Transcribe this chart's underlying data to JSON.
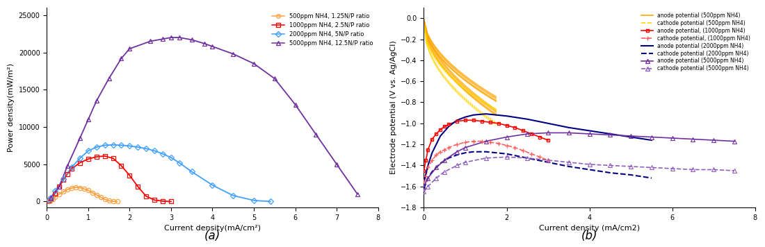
{
  "panel_a": {
    "title": "(a)",
    "xlabel": "Current density(mA/cm²)",
    "ylabel": "Power density(mW/m²)",
    "xlim": [
      0,
      8
    ],
    "ylim": [
      -800,
      26000
    ],
    "yticks": [
      0,
      5000,
      10000,
      15000,
      20000,
      25000
    ],
    "xticks": [
      0,
      1,
      2,
      3,
      4,
      5,
      6,
      7,
      8
    ],
    "colors": [
      "#FFA040",
      "#FF0000",
      "#40A0FF",
      "#7030A0"
    ],
    "markers": [
      "o",
      "s",
      "D",
      "^"
    ],
    "labels": [
      "500ppm NH4, 1.25N/P ratio",
      "1000ppm NH4, 2.5N/P ratio",
      "2000ppm NH4, 5N/P ratio",
      "5000ppm NH4, 12.5N/P ratio"
    ],
    "x_data": [
      [
        0.05,
        0.1,
        0.15,
        0.2,
        0.3,
        0.4,
        0.5,
        0.6,
        0.7,
        0.8,
        0.9,
        1.0,
        1.1,
        1.2,
        1.3,
        1.4,
        1.5,
        1.6,
        1.7
      ],
      [
        0.05,
        0.1,
        0.2,
        0.3,
        0.4,
        0.5,
        0.6,
        0.8,
        1.0,
        1.2,
        1.4,
        1.6,
        1.8,
        2.0,
        2.2,
        2.4,
        2.6,
        2.8,
        3.0
      ],
      [
        0.05,
        0.1,
        0.2,
        0.4,
        0.6,
        0.8,
        1.0,
        1.2,
        1.4,
        1.6,
        1.8,
        2.0,
        2.2,
        2.4,
        2.6,
        2.8,
        3.0,
        3.2,
        3.5,
        4.0,
        4.5,
        5.0,
        5.4
      ],
      [
        0.1,
        0.3,
        0.5,
        0.8,
        1.0,
        1.2,
        1.5,
        1.8,
        2.0,
        2.5,
        2.8,
        3.0,
        3.2,
        3.5,
        3.8,
        4.0,
        4.5,
        5.0,
        5.5,
        6.0,
        6.5,
        7.0,
        7.5
      ]
    ],
    "y_data": [
      [
        60,
        180,
        350,
        600,
        1000,
        1300,
        1600,
        1800,
        1920,
        1850,
        1700,
        1500,
        1200,
        900,
        600,
        300,
        100,
        30,
        0
      ],
      [
        100,
        400,
        1100,
        2000,
        2900,
        3700,
        4400,
        5200,
        5700,
        6000,
        6100,
        5800,
        4800,
        3500,
        2000,
        700,
        200,
        50,
        0
      ],
      [
        200,
        500,
        1400,
        3000,
        4600,
        5800,
        6800,
        7300,
        7550,
        7600,
        7550,
        7450,
        7300,
        7100,
        6800,
        6400,
        5900,
        5200,
        4000,
        2200,
        800,
        150,
        0
      ],
      [
        500,
        2000,
        4800,
        8500,
        11000,
        13500,
        16500,
        19200,
        20500,
        21500,
        21800,
        22000,
        22000,
        21700,
        21200,
        20800,
        19800,
        18500,
        16500,
        13000,
        9000,
        5000,
        1000
      ]
    ]
  },
  "panel_b": {
    "title": "(b)",
    "xlabel": "Current density (mA/cm2)",
    "ylabel": "Electrode potential (V vs. Ag/AgCl)",
    "xlim": [
      0,
      8
    ],
    "ylim": [
      -1.8,
      0.1
    ],
    "yticks": [
      0,
      -0.2,
      -0.4,
      -0.6,
      -0.8,
      -1.0,
      -1.2,
      -1.4,
      -1.6,
      -1.8
    ],
    "xticks": [
      0,
      2,
      4,
      6,
      8
    ],
    "series_500_anode_color": "#FFA500",
    "series_500_cathode_color": "#FFD700",
    "series_1000_anode_color": "#FF0000",
    "series_1000_cathode_color": "#FF6060",
    "series_2000_anode_color": "#000080",
    "series_2000_cathode_color": "#000080",
    "series_5000_anode_color": "#7030A0",
    "series_5000_cathode_color": "#9060C0",
    "legend_labels": [
      "anode potential (500ppm NH4)",
      "cathode potential (500ppm NH4)",
      "anode potential, (1000ppm NH4)",
      "cathode potential, (1000ppm NH4)",
      "anode potential (2000ppm NH4)",
      "cathode potential (2000ppm NH4)",
      "anode potential (5000ppm NH4)",
      "cathode potential (5000ppm NH4)"
    ]
  }
}
